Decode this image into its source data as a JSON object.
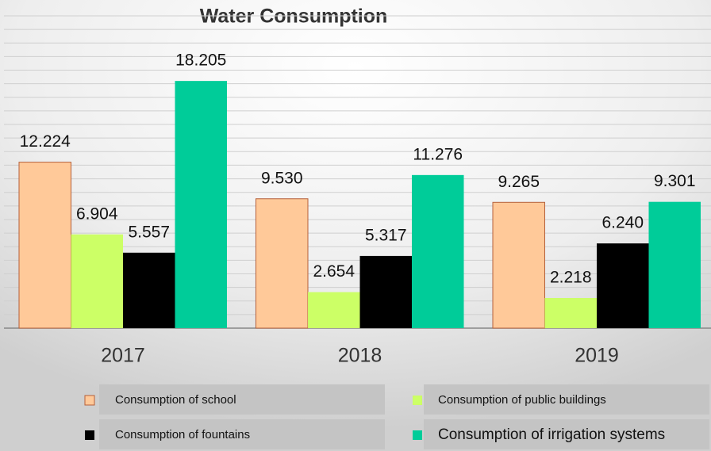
{
  "chart_data": {
    "type": "bar",
    "title": "Water Consumption",
    "categories": [
      "2017",
      "2018",
      "2019"
    ],
    "series": [
      {
        "name": "Consumption of school",
        "color": "#ffc999",
        "values": [
          12.224,
          9.53,
          9.265
        ],
        "value_labels": [
          "12.224",
          "9.530",
          "9.265"
        ]
      },
      {
        "name": "Consumption of public buildings",
        "color": "#ccff66",
        "values": [
          6.904,
          2.654,
          2.218
        ],
        "value_labels": [
          "6.904",
          "2.654",
          "2.218"
        ]
      },
      {
        "name": "Consumption of fountains",
        "color": "#000000",
        "values": [
          5.557,
          5.317,
          6.24
        ],
        "value_labels": [
          "5.557",
          "5.317",
          "6.240"
        ]
      },
      {
        "name": "Consumption of irrigation systems",
        "color": "#00cc99",
        "values": [
          18.205,
          11.276,
          9.301
        ],
        "value_labels": [
          "18.205",
          "11.276",
          "9.301"
        ]
      }
    ],
    "ylim": [
      0,
      23
    ],
    "yticks": [
      0,
      1,
      2,
      3,
      4,
      5,
      6,
      7,
      8,
      9,
      10,
      11,
      12,
      13,
      14,
      15,
      16,
      17,
      18,
      19,
      20,
      21,
      22,
      23
    ],
    "grid": true
  }
}
